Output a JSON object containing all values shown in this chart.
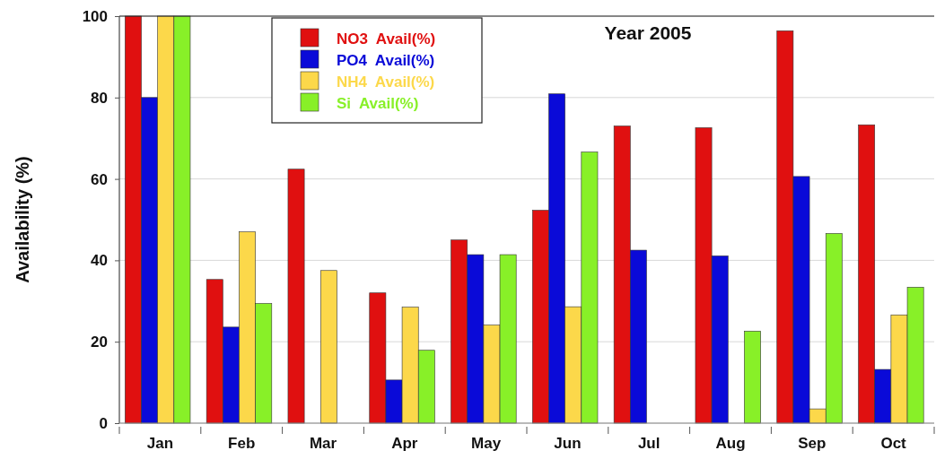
{
  "chart_data": {
    "type": "bar",
    "title": "Year 2005",
    "ylabel": "Availability (%)",
    "categories": [
      "Jan",
      "Feb",
      "Mar",
      "Apr",
      "May",
      "Jun",
      "Jul",
      "Aug",
      "Sep",
      "Oct"
    ],
    "series": [
      {
        "name": "NO3  Avail(%)",
        "color": "#e01010",
        "values": [
          100,
          35.3,
          62.4,
          32,
          45,
          52.3,
          73,
          72.6,
          96.4,
          73.3
        ]
      },
      {
        "name": "PO4  Avail(%)",
        "color": "#0a0ad8",
        "values": [
          80,
          23.6,
          null,
          10.6,
          41.4,
          80.9,
          42.5,
          41.1,
          60.6,
          13.2
        ]
      },
      {
        "name": "NH4  Avail(%)",
        "color": "#fcd84a",
        "values": [
          100,
          47,
          37.5,
          28.5,
          24.1,
          28.6,
          null,
          null,
          3.5,
          26.6
        ]
      },
      {
        "name": "Si  Avail(%)",
        "color": "#88f028",
        "values": [
          100,
          29.4,
          null,
          17.9,
          41.4,
          66.6,
          null,
          22.6,
          46.6,
          33.4
        ]
      }
    ],
    "ylim": [
      0,
      100
    ],
    "yticks": [
      0,
      20,
      40,
      60,
      80,
      100
    ],
    "grid": "y",
    "legend": "top left"
  }
}
